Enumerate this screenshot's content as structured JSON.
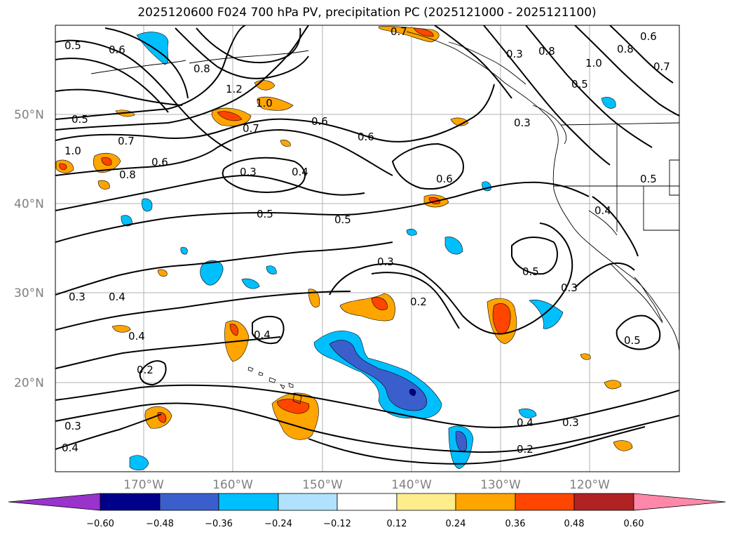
{
  "title": "2025120600 F024 700 hPa PV, precipitation PC (2025121000 - 2025121100)",
  "lat_labels": [
    "50°N",
    "40°N",
    "30°N",
    "20°N"
  ],
  "lon_labels": [
    "170°W",
    "160°W",
    "150°W",
    "140°W",
    "130°W",
    "120°W"
  ],
  "contour_labels": [
    "0.5",
    "0.6",
    "0.8",
    "1.2",
    "1.0",
    "0.7",
    "0.5",
    "1.0",
    "0.7",
    "0.6",
    "0.8",
    "0.3",
    "0.4",
    "0.6",
    "0.6",
    "0.6",
    "0.5",
    "0.5",
    "0.3",
    "0.5",
    "0.3",
    "0.4",
    "0.4",
    "0.2",
    "0.4",
    "0.2",
    "0.3",
    "0.4",
    "0.4",
    "0.3",
    "0.2",
    "0.3",
    "0.4",
    "0.5",
    "0.7",
    "0.3",
    "0.8",
    "1.0",
    "0.5",
    "0.8",
    "0.6",
    "0.7",
    "0.3",
    "0.5"
  ],
  "colorbar": {
    "ticks": [
      "−0.60",
      "−0.48",
      "−0.36",
      "−0.24",
      "−0.12",
      "0.12",
      "0.24",
      "0.36",
      "0.48",
      "0.60"
    ],
    "colors": [
      "#9933cc",
      "#00008b",
      "#3a5fcd",
      "#00bfff",
      "#b0e2ff",
      "#ffffff",
      "#ffec8b",
      "#ffa500",
      "#ff4500",
      "#b22222",
      "#ff88aa"
    ]
  }
}
